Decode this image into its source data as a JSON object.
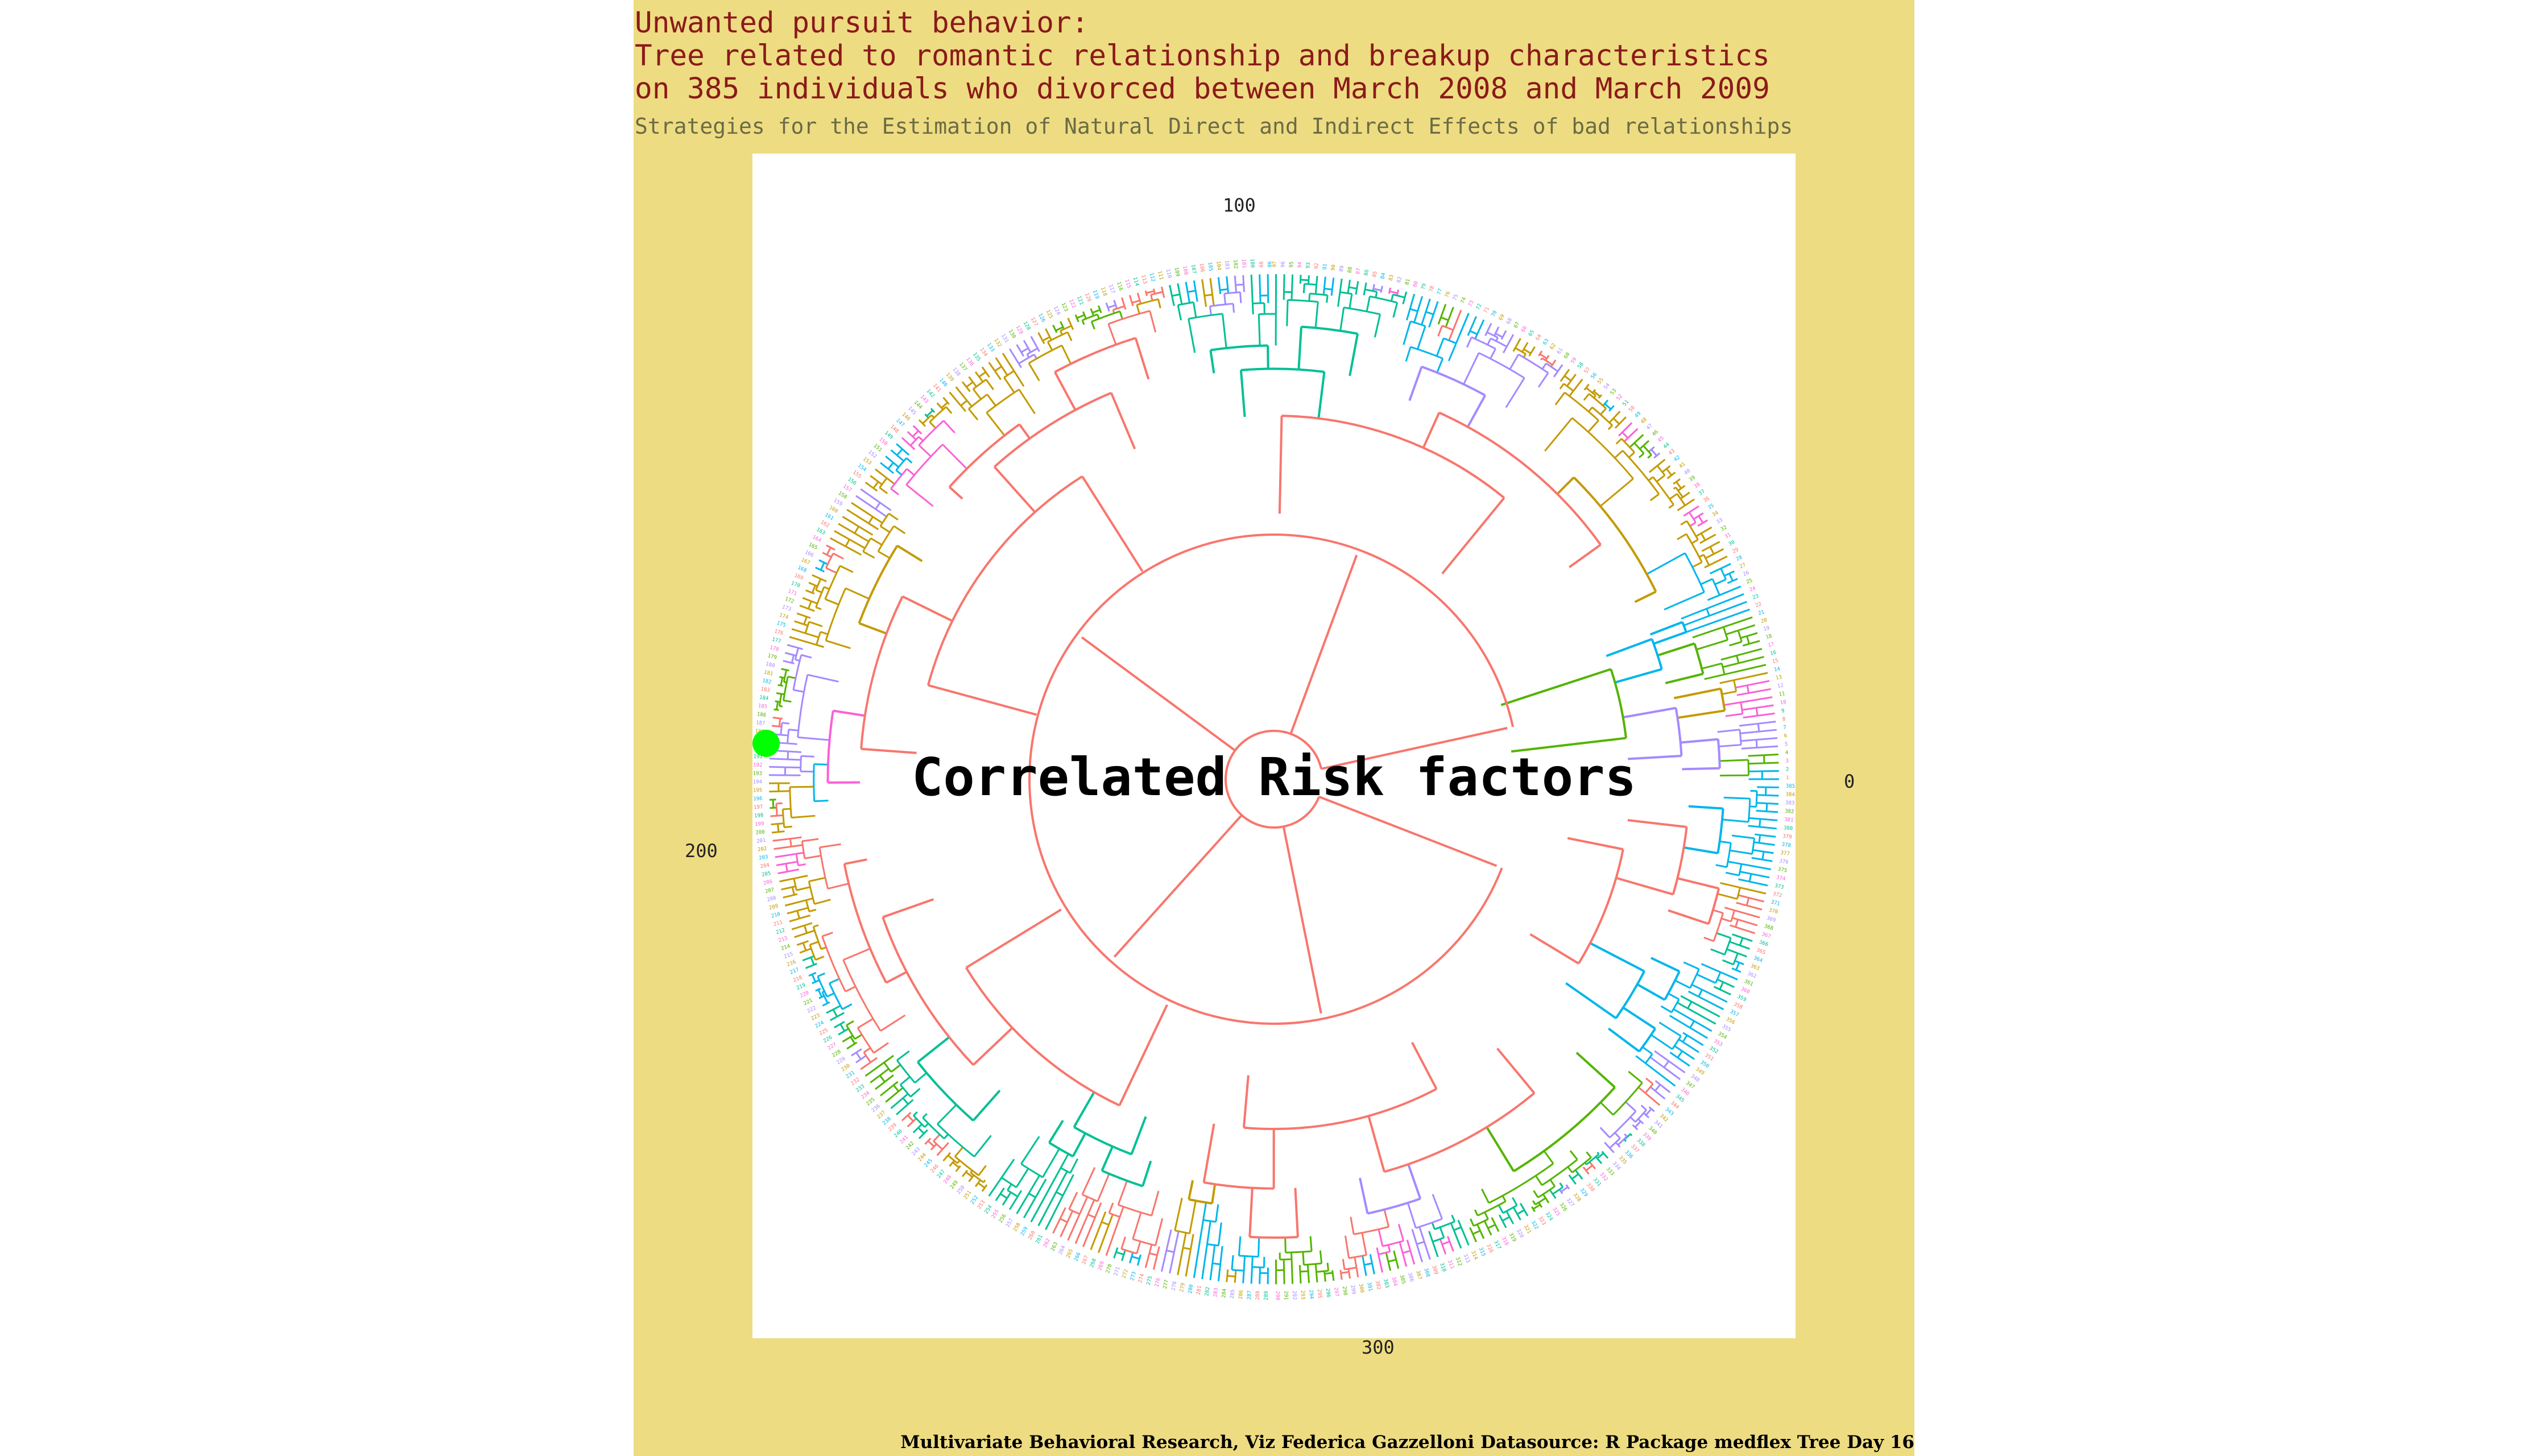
{
  "title_lines": [
    "Unwanted pursuit behavior:",
    "Tree related to romantic relationship and breakup characteristics",
    "on 385 individuals who divorced between March 2008 and March 2009"
  ],
  "subtitle": "Strategies for the Estimation of Natural Direct and Indirect Effects of bad relationships",
  "center_label": "Correlated Risk factors",
  "angle_labels": {
    "a0": "0",
    "a100": "100",
    "a200": "200",
    "a300": "300"
  },
  "caption": "Multivariate Behavioral Research, Viz Federica Gazzelloni Datasource: R Package medflex Tree Day 16",
  "leaf_count": 385,
  "colors": {
    "background": "#EEDC82",
    "panel": "#FFFFFF",
    "title": "#8B1A1A",
    "subtitle": "#6B6B45",
    "trunk": "#F8766D",
    "marker": "#00FF00",
    "cluster_palette": [
      "#F8766D",
      "#C49A00",
      "#53B400",
      "#00C094",
      "#00B6EB",
      "#A58AFF",
      "#FB61D7"
    ]
  }
}
